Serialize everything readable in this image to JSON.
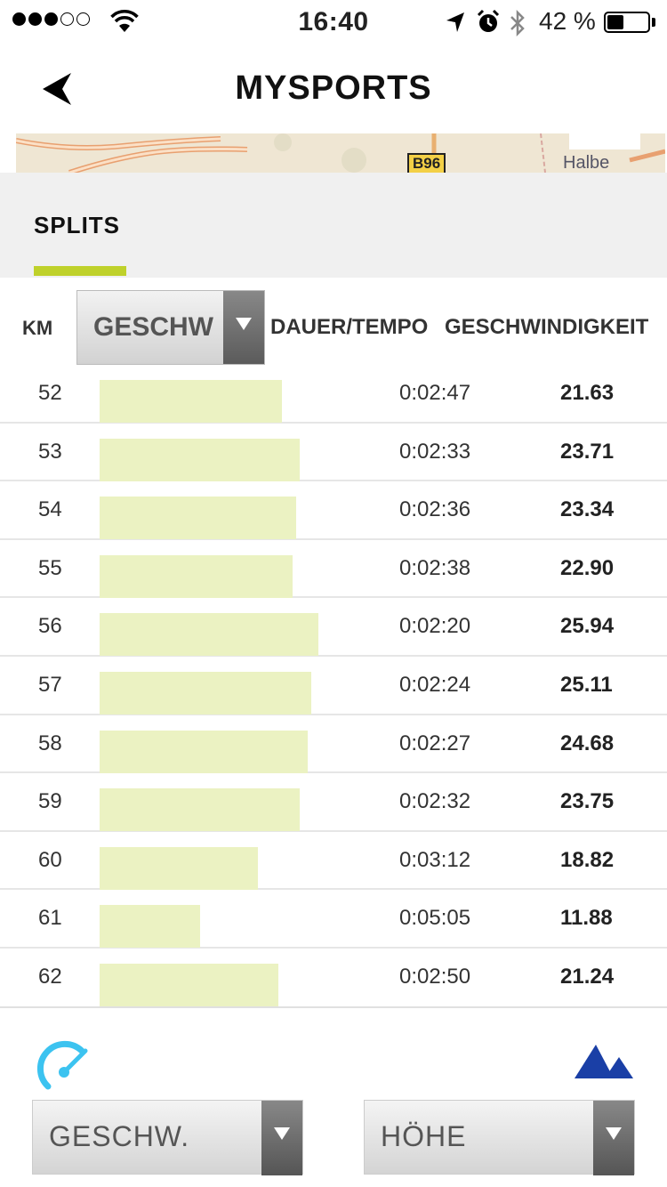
{
  "status_bar": {
    "time": "16:40",
    "battery_percent": "42 %",
    "battery_level": 0.42,
    "signal_bars_filled": 3,
    "signal_bars_total": 5,
    "icons": [
      "signal-dots-icon",
      "wifi-icon",
      "location-arrow-icon",
      "alarm-clock-icon",
      "bluetooth-icon",
      "battery-icon"
    ]
  },
  "nav": {
    "title": "MYSPORTS",
    "back_icon": "back-arrow-icon"
  },
  "map": {
    "place_label": "Halbe",
    "route_label": "B96"
  },
  "tab": {
    "label": "SPLITS",
    "accent_color": "#bfd12b"
  },
  "table": {
    "header_km": "KM",
    "metric_select_value": "GESCHW",
    "header_duration": "DAUER/TEMPO",
    "header_speed": "GESCHWINDIGKEIT",
    "bar_color": "#ebf2c2",
    "rows": [
      {
        "km": "52",
        "duration": "0:02:47",
        "speed": "21.63",
        "speed_value": 21.63
      },
      {
        "km": "53",
        "duration": "0:02:33",
        "speed": "23.71",
        "speed_value": 23.71
      },
      {
        "km": "54",
        "duration": "0:02:36",
        "speed": "23.34",
        "speed_value": 23.34
      },
      {
        "km": "55",
        "duration": "0:02:38",
        "speed": "22.90",
        "speed_value": 22.9
      },
      {
        "km": "56",
        "duration": "0:02:20",
        "speed": "25.94",
        "speed_value": 25.94
      },
      {
        "km": "57",
        "duration": "0:02:24",
        "speed": "25.11",
        "speed_value": 25.11
      },
      {
        "km": "58",
        "duration": "0:02:27",
        "speed": "24.68",
        "speed_value": 24.68
      },
      {
        "km": "59",
        "duration": "0:02:32",
        "speed": "23.75",
        "speed_value": 23.75
      },
      {
        "km": "60",
        "duration": "0:03:12",
        "speed": "18.82",
        "speed_value": 18.82
      },
      {
        "km": "61",
        "duration": "0:05:05",
        "speed": "11.88",
        "speed_value": 11.88
      },
      {
        "km": "62",
        "duration": "0:02:50",
        "speed": "21.24",
        "speed_value": 21.24
      }
    ]
  },
  "bottom": {
    "left_icon": "speedometer-icon",
    "right_icon": "mountain-icon",
    "left_select_value": "GESCHW.",
    "right_select_value": "HÖHE",
    "speed_icon_color": "#3cc3f0",
    "mountain_icon_color": "#1a3fa6"
  }
}
